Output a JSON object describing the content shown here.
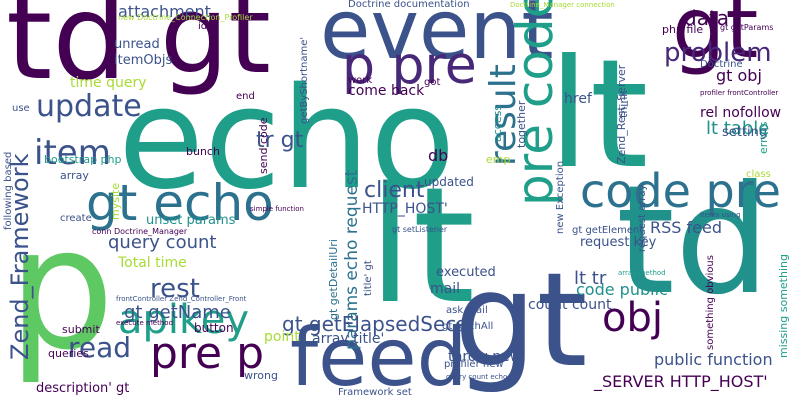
{
  "word_cloud": {
    "words": [
      "p",
      "lt",
      "td",
      "gt",
      "echo",
      "lt",
      "pre",
      "gt",
      "event",
      "gt",
      "feed",
      "p pre",
      "pre code",
      "code pre",
      "gt echo",
      "apikey",
      "obj",
      "update",
      "item",
      "pre p",
      "problem",
      "data",
      "result",
      "client",
      "read",
      "rest",
      "lt table",
      "gt obj",
      "query count",
      "Zend_Framework",
      "params echo request",
      "gt getName",
      "gt getElapsedSecs",
      "lt tr",
      "tr gt",
      "time query",
      "attachment",
      "unread",
      "itemObjs",
      "public function",
      "_SERVER HTTP_HOST'",
      "throw new",
      "come back",
      "db",
      "HTTP_HOST'",
      "mail",
      "code public",
      "count count",
      "array title'",
      "RSS feed",
      "Total time",
      "bootstrap php",
      "send code",
      "rel nofollow",
      "setting",
      "href",
      "Zend_Rest_Server",
      "gt getDetailUri",
      "unset params",
      "request key",
      "executed",
      "description' gt",
      "button",
      "point",
      "wrong",
      "submit",
      "queries",
      "mysite",
      "Doctrine documentation",
      "php file",
      "Doctrine",
      "class",
      "errors",
      "missing something",
      "something obvious",
      "profiler new",
      "Framework set",
      "gt fetchAll",
      "ask mail",
      "new Exception",
      "emp",
      "access",
      "together",
      "think",
      "request array",
      "gt getElement",
      "updated",
      "array",
      "create",
      "following based",
      "bunch",
      "work",
      "got",
      "end",
      "use",
      "conn Doctrine_Manager",
      "id'",
      "getByShortname'",
      "title' gt",
      "gt setListener",
      "gt getParams",
      "profiler frontController",
      "new Doctrine_Connection_Profiler",
      "Doctrine_Manager connection",
      "query count echo",
      "frontController Zend_Controller_Front",
      "execute method",
      "array method",
      "simple function",
      "items using"
    ],
    "palette": [
      "#440154",
      "#482878",
      "#3b528b",
      "#31688e",
      "#2c728e",
      "#21918c",
      "#1f9e89",
      "#5ec962",
      "#a8db34"
    ]
  }
}
